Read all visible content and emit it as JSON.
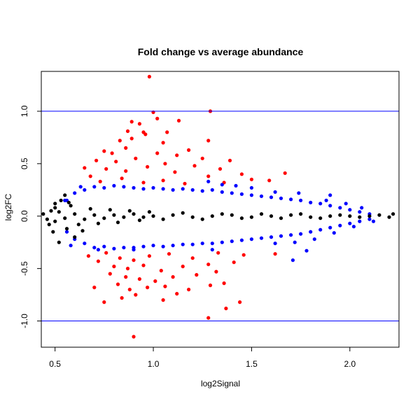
{
  "chart_data": {
    "type": "scatter",
    "title": "Fold change vs average abundance",
    "xlabel": "log2Signal",
    "ylabel": "log2FC",
    "xlim": [
      0.43,
      2.25
    ],
    "ylim": [
      -1.25,
      1.38
    ],
    "x_ticks": [
      {
        "value": 0.5,
        "label": "0.5"
      },
      {
        "value": 1.0,
        "label": "1.0"
      },
      {
        "value": 1.5,
        "label": "1.5"
      },
      {
        "value": 2.0,
        "label": "2.0"
      }
    ],
    "y_ticks": [
      {
        "value": -1.0,
        "label": "-1.0"
      },
      {
        "value": -0.5,
        "label": "-0.5"
      },
      {
        "value": 0.0,
        "label": "0.0"
      },
      {
        "value": 0.5,
        "label": "0.5"
      },
      {
        "value": 1.0,
        "label": "1.0"
      }
    ],
    "reference_lines": [
      {
        "name": "upper-threshold",
        "y": 1.0,
        "color": "#0000ff"
      },
      {
        "name": "lower-threshold",
        "y": -1.0,
        "color": "#0000ff"
      }
    ],
    "grid": false,
    "legend": "none",
    "series": [
      {
        "color": "#ff0000",
        "points": [
          [
            0.98,
            1.33
          ],
          [
            1.0,
            0.99
          ],
          [
            1.29,
            1.0
          ],
          [
            0.89,
            0.9
          ],
          [
            0.93,
            0.88
          ],
          [
            1.02,
            0.93
          ],
          [
            1.13,
            0.91
          ],
          [
            0.87,
            0.81
          ],
          [
            0.95,
            0.8
          ],
          [
            1.07,
            0.8
          ],
          [
            1.28,
            0.72
          ],
          [
            0.83,
            0.72
          ],
          [
            0.89,
            0.74
          ],
          [
            0.96,
            0.78
          ],
          [
            1.05,
            0.7
          ],
          [
            0.75,
            0.62
          ],
          [
            0.79,
            0.6
          ],
          [
            0.86,
            0.65
          ],
          [
            1.02,
            0.6
          ],
          [
            1.12,
            0.58
          ],
          [
            1.18,
            0.63
          ],
          [
            1.25,
            0.55
          ],
          [
            1.39,
            0.53
          ],
          [
            0.71,
            0.53
          ],
          [
            0.81,
            0.52
          ],
          [
            0.91,
            0.55
          ],
          [
            1.06,
            0.5
          ],
          [
            1.21,
            0.48
          ],
          [
            1.34,
            0.45
          ],
          [
            1.45,
            0.4
          ],
          [
            1.67,
            0.41
          ],
          [
            0.65,
            0.46
          ],
          [
            0.76,
            0.45
          ],
          [
            0.86,
            0.43
          ],
          [
            0.97,
            0.47
          ],
          [
            1.11,
            0.42
          ],
          [
            1.28,
            0.38
          ],
          [
            1.5,
            0.35
          ],
          [
            1.59,
            0.34
          ],
          [
            0.68,
            0.38
          ],
          [
            0.73,
            0.33
          ],
          [
            0.84,
            0.36
          ],
          [
            0.95,
            0.32
          ],
          [
            1.05,
            0.34
          ],
          [
            1.16,
            0.31
          ],
          [
            1.36,
            0.32
          ],
          [
            0.76,
            -0.35
          ],
          [
            0.83,
            -0.4
          ],
          [
            0.9,
            -0.42
          ],
          [
            0.98,
            -0.38
          ],
          [
            1.08,
            -0.36
          ],
          [
            1.2,
            -0.4
          ],
          [
            1.33,
            -0.35
          ],
          [
            1.46,
            -0.37
          ],
          [
            1.62,
            -0.36
          ],
          [
            0.67,
            -0.38
          ],
          [
            0.72,
            -0.43
          ],
          [
            0.8,
            -0.48
          ],
          [
            0.87,
            -0.5
          ],
          [
            0.95,
            -0.47
          ],
          [
            1.04,
            -0.52
          ],
          [
            1.15,
            -0.48
          ],
          [
            1.28,
            -0.46
          ],
          [
            1.41,
            -0.44
          ],
          [
            0.78,
            -0.55
          ],
          [
            0.86,
            -0.58
          ],
          [
            0.93,
            -0.6
          ],
          [
            1.01,
            -0.62
          ],
          [
            1.1,
            -0.58
          ],
          [
            1.22,
            -0.56
          ],
          [
            1.32,
            -0.53
          ],
          [
            0.82,
            -0.65
          ],
          [
            0.88,
            -0.7
          ],
          [
            0.97,
            -0.68
          ],
          [
            1.06,
            -0.67
          ],
          [
            1.18,
            -0.7
          ],
          [
            1.29,
            -0.66
          ],
          [
            0.75,
            -0.82
          ],
          [
            0.84,
            -0.78
          ],
          [
            0.91,
            -0.75
          ],
          [
            1.05,
            -0.8
          ],
          [
            1.37,
            -0.88
          ],
          [
            1.44,
            -0.82
          ],
          [
            1.28,
            -0.97
          ],
          [
            0.9,
            -1.15
          ],
          [
            1.12,
            -0.74
          ],
          [
            0.7,
            -0.68
          ],
          [
            1.36,
            -0.64
          ]
        ]
      },
      {
        "color": "#0000ff",
        "points": [
          [
            0.56,
            0.15
          ],
          [
            0.6,
            0.22
          ],
          [
            0.65,
            0.25
          ],
          [
            0.7,
            0.28
          ],
          [
            0.75,
            0.27
          ],
          [
            0.8,
            0.29
          ],
          [
            0.85,
            0.28
          ],
          [
            0.9,
            0.27
          ],
          [
            0.95,
            0.26
          ],
          [
            1.0,
            0.27
          ],
          [
            1.05,
            0.26
          ],
          [
            1.1,
            0.25
          ],
          [
            1.15,
            0.26
          ],
          [
            1.2,
            0.25
          ],
          [
            1.25,
            0.24
          ],
          [
            1.3,
            0.25
          ],
          [
            1.35,
            0.23
          ],
          [
            1.4,
            0.22
          ],
          [
            1.45,
            0.21
          ],
          [
            1.5,
            0.2
          ],
          [
            1.55,
            0.19
          ],
          [
            1.6,
            0.18
          ],
          [
            1.65,
            0.17
          ],
          [
            1.7,
            0.16
          ],
          [
            1.75,
            0.15
          ],
          [
            1.8,
            0.13
          ],
          [
            1.85,
            0.12
          ],
          [
            1.9,
            0.1
          ],
          [
            1.95,
            0.08
          ],
          [
            2.0,
            0.06
          ],
          [
            2.05,
            0.04
          ],
          [
            2.1,
            0.02
          ],
          [
            0.56,
            -0.15
          ],
          [
            0.6,
            -0.22
          ],
          [
            0.65,
            -0.26
          ],
          [
            0.7,
            -0.3
          ],
          [
            0.75,
            -0.29
          ],
          [
            0.8,
            -0.31
          ],
          [
            0.85,
            -0.3
          ],
          [
            0.9,
            -0.3
          ],
          [
            0.95,
            -0.29
          ],
          [
            1.0,
            -0.28
          ],
          [
            1.05,
            -0.29
          ],
          [
            1.1,
            -0.28
          ],
          [
            1.15,
            -0.27
          ],
          [
            1.2,
            -0.27
          ],
          [
            1.25,
            -0.26
          ],
          [
            1.3,
            -0.26
          ],
          [
            1.35,
            -0.25
          ],
          [
            1.4,
            -0.24
          ],
          [
            1.45,
            -0.23
          ],
          [
            1.5,
            -0.22
          ],
          [
            1.55,
            -0.21
          ],
          [
            1.6,
            -0.2
          ],
          [
            1.65,
            -0.19
          ],
          [
            1.7,
            -0.18
          ],
          [
            1.75,
            -0.17
          ],
          [
            1.8,
            -0.15
          ],
          [
            1.85,
            -0.13
          ],
          [
            1.9,
            -0.11
          ],
          [
            1.95,
            -0.09
          ],
          [
            2.0,
            -0.07
          ],
          [
            2.05,
            -0.05
          ],
          [
            2.1,
            -0.03
          ],
          [
            0.55,
            0.15
          ],
          [
            1.28,
            0.33
          ],
          [
            1.35,
            0.3
          ],
          [
            1.42,
            0.29
          ],
          [
            1.5,
            0.27
          ],
          [
            1.62,
            0.23
          ],
          [
            1.74,
            0.22
          ],
          [
            1.88,
            0.15
          ],
          [
            1.98,
            0.12
          ],
          [
            1.62,
            -0.26
          ],
          [
            1.72,
            -0.25
          ],
          [
            1.82,
            -0.22
          ],
          [
            1.92,
            -0.16
          ],
          [
            2.02,
            -0.1
          ],
          [
            1.3,
            -0.32
          ],
          [
            0.9,
            -0.32
          ],
          [
            0.72,
            -0.32
          ],
          [
            0.63,
            0.28
          ],
          [
            0.58,
            -0.28
          ],
          [
            1.71,
            -0.42
          ],
          [
            1.78,
            -0.33
          ],
          [
            1.9,
            0.2
          ],
          [
            2.06,
            0.08
          ],
          [
            2.12,
            -0.05
          ]
        ]
      },
      {
        "color": "#000000",
        "points": [
          [
            0.44,
            0.02
          ],
          [
            0.46,
            -0.03
          ],
          [
            0.48,
            0.05
          ],
          [
            0.5,
            -0.05
          ],
          [
            0.52,
            0.04
          ],
          [
            0.55,
            -0.02
          ],
          [
            0.6,
            0.02
          ],
          [
            0.65,
            -0.03
          ],
          [
            0.7,
            0.01
          ],
          [
            0.75,
            -0.02
          ],
          [
            0.8,
            0.01
          ],
          [
            0.85,
            -0.01
          ],
          [
            0.9,
            0.02
          ],
          [
            0.95,
            -0.01
          ],
          [
            1.0,
            0.0
          ],
          [
            1.1,
            0.01
          ],
          [
            1.2,
            -0.01
          ],
          [
            1.3,
            0.0
          ],
          [
            1.4,
            0.01
          ],
          [
            1.5,
            -0.01
          ],
          [
            1.6,
            0.0
          ],
          [
            1.7,
            0.01
          ],
          [
            1.8,
            -0.01
          ],
          [
            1.9,
            0.0
          ],
          [
            2.0,
            0.0
          ],
          [
            2.1,
            0.0
          ],
          [
            2.15,
            0.01
          ],
          [
            2.2,
            -0.01
          ],
          [
            2.22,
            0.02
          ],
          [
            0.53,
            0.15
          ],
          [
            0.56,
            -0.12
          ],
          [
            0.5,
            0.08
          ],
          [
            0.47,
            -0.08
          ],
          [
            0.58,
            0.1
          ],
          [
            0.62,
            -0.08
          ],
          [
            0.68,
            0.07
          ],
          [
            0.72,
            -0.07
          ],
          [
            0.78,
            0.06
          ],
          [
            0.82,
            -0.06
          ],
          [
            0.88,
            0.05
          ],
          [
            0.93,
            -0.04
          ],
          [
            0.98,
            0.04
          ],
          [
            1.05,
            -0.03
          ],
          [
            1.15,
            0.03
          ],
          [
            1.25,
            -0.03
          ],
          [
            1.35,
            0.02
          ],
          [
            1.45,
            -0.02
          ],
          [
            1.55,
            0.02
          ],
          [
            1.65,
            -0.02
          ],
          [
            1.75,
            0.02
          ],
          [
            1.85,
            -0.02
          ],
          [
            1.95,
            0.01
          ],
          [
            2.05,
            -0.01
          ],
          [
            0.49,
            -0.15
          ],
          [
            0.55,
            0.2
          ],
          [
            0.6,
            -0.2
          ],
          [
            0.52,
            -0.25
          ],
          [
            0.5,
            0.12
          ],
          [
            0.57,
            0.13
          ],
          [
            0.64,
            -0.14
          ]
        ]
      }
    ]
  }
}
